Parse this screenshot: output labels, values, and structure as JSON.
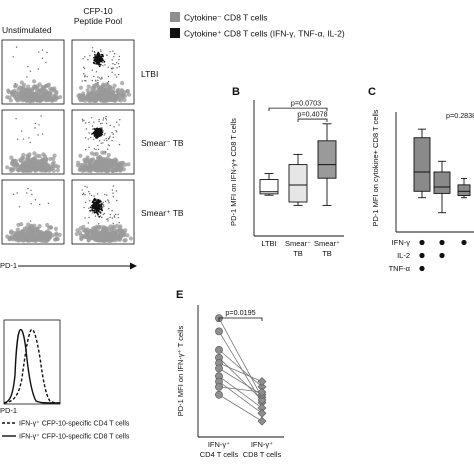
{
  "legend": {
    "neg_label": "Cytokine⁻ CD8 T cells",
    "pos_label": "Cytokine⁺ CD8 T cells (IFN-γ, TNF-α, IL-2)",
    "neg_color": "#8f8f8f",
    "pos_color": "#111111"
  },
  "panelA": {
    "col_unstim": "Unstimulated",
    "col_cfp_line1": "CFP-10",
    "col_cfp_line2": "Peptide Pool",
    "rows": [
      "LTBI",
      "Smear⁻ TB",
      "Smear⁺ TB"
    ],
    "xlabel": "PD-1"
  },
  "panelB": {
    "letter": "B",
    "ylabel": "PD-1 MFI on IFN-γ+ CD8 T cells",
    "p1": "p=0.0703",
    "p2": "p=0.4078",
    "cat_ltbi": "LTBI",
    "cat_smneg_1": "Smear⁻",
    "cat_smneg_2": "TB",
    "cat_smpos_1": "Smear⁺",
    "cat_smpos_2": "TB"
  },
  "panelC": {
    "letter": "C",
    "ylabel": "PD-1 MFI on cytokine+ CD8 T cells",
    "p": "p=0.2838",
    "row_ifng": "IFN-γ",
    "row_il2": "IL-2",
    "row_tnfa": "TNF-α"
  },
  "panelD": {
    "xlabel": "PD-1",
    "legend_cd4": "IFN-γ⁺ CFP-10-specific CD4 T cells",
    "legend_cd8": "IFN-γ⁺ CFP-10-specific CD8 T cells"
  },
  "panelE": {
    "letter": "E",
    "ylabel": "PD-1 MFI on IFN-γ⁺ T cells",
    "p": "p=0.0195",
    "cat_cd4_1": "IFN-γ⁺",
    "cat_cd4_2": "CD4 T cells",
    "cat_cd8_1": "IFN-γ⁺",
    "cat_cd8_2": "CD8 T cells"
  },
  "chart_data": [
    {
      "panel": "B",
      "type": "box",
      "categories": [
        "LTBI",
        "Smear⁻ TB",
        "Smear⁺ TB"
      ],
      "boxes": [
        {
          "min": 60,
          "q1": 62,
          "median": 65,
          "q3": 83,
          "max": 92
        },
        {
          "min": 45,
          "q1": 50,
          "median": 75,
          "q3": 105,
          "max": 120
        },
        {
          "min": 45,
          "q1": 85,
          "median": 105,
          "q3": 140,
          "max": 165
        }
      ],
      "fills": [
        "#ffffff",
        "#e6e6e6",
        "#9a9a9a"
      ],
      "ylim": [
        0,
        200
      ],
      "comparisons": [
        {
          "from": 0,
          "to": 2,
          "label": "p=0.0703"
        },
        {
          "from": 1,
          "to": 2,
          "label": "p=0.4078"
        }
      ]
    },
    {
      "panel": "C",
      "type": "box",
      "boxes": [
        {
          "min": 80,
          "q1": 95,
          "median": 140,
          "q3": 220,
          "max": 240
        },
        {
          "min": 45,
          "q1": 90,
          "median": 105,
          "q3": 140,
          "max": 165
        },
        {
          "min": 80,
          "q1": 85,
          "median": 95,
          "q3": 110,
          "max": 125
        }
      ],
      "fill": "#8a8a8a",
      "ylim": [
        0,
        280
      ],
      "combos": [
        {
          "ifng": true,
          "il2": true,
          "tnfa": true
        },
        {
          "ifng": true,
          "il2": true,
          "tnfa": false
        },
        {
          "ifng": true,
          "il2": false,
          "tnfa": false
        }
      ]
    },
    {
      "panel": "E",
      "type": "paired-scatter",
      "categories": [
        "IFN-γ⁺ CD4 T cells",
        "IFN-γ⁺ CD8 T cells"
      ],
      "pairs": [
        [
          450,
          150
        ],
        [
          400,
          130
        ],
        [
          330,
          190
        ],
        [
          300,
          140
        ],
        [
          280,
          210
        ],
        [
          260,
          160
        ],
        [
          230,
          110
        ],
        [
          210,
          90
        ],
        [
          190,
          170
        ],
        [
          160,
          60
        ]
      ],
      "ylim": [
        0,
        500
      ]
    }
  ]
}
